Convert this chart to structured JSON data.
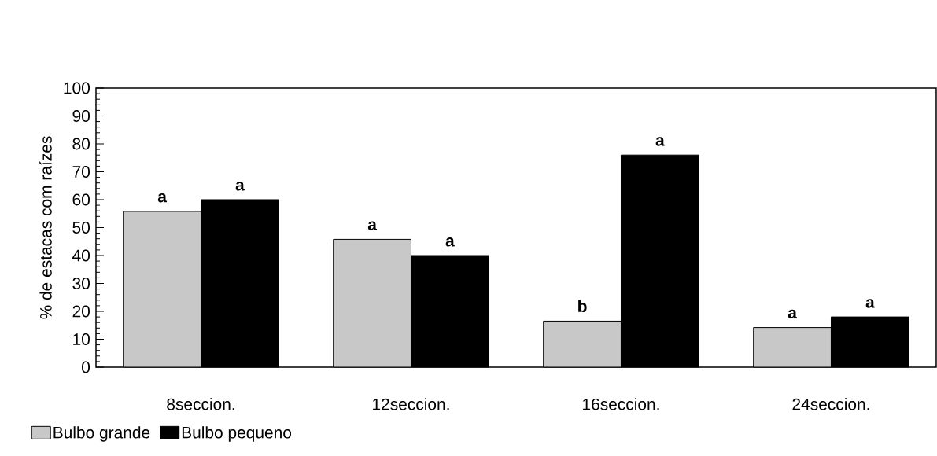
{
  "chart_data": {
    "type": "bar",
    "ylabel": "% de estacas com raízes",
    "categories": [
      "8seccion.",
      "12seccion.",
      "16seccion.",
      "24seccion."
    ],
    "series": [
      {
        "name": "Bulbo grande",
        "color": "#c8c8c8",
        "values": [
          55.8,
          45.8,
          16.5,
          14.2
        ],
        "value_labels": [
          "a",
          "a",
          "b",
          "a"
        ]
      },
      {
        "name": "Bulbo pequeno",
        "color": "#000000",
        "values": [
          60,
          40,
          76,
          18
        ],
        "value_labels": [
          "a",
          "a",
          "a",
          "a"
        ]
      }
    ],
    "ylim": [
      0,
      100
    ],
    "yticks": [
      0,
      10,
      20,
      30,
      40,
      50,
      60,
      70,
      80,
      90,
      100
    ],
    "grid": false,
    "legend": "bottom left"
  }
}
